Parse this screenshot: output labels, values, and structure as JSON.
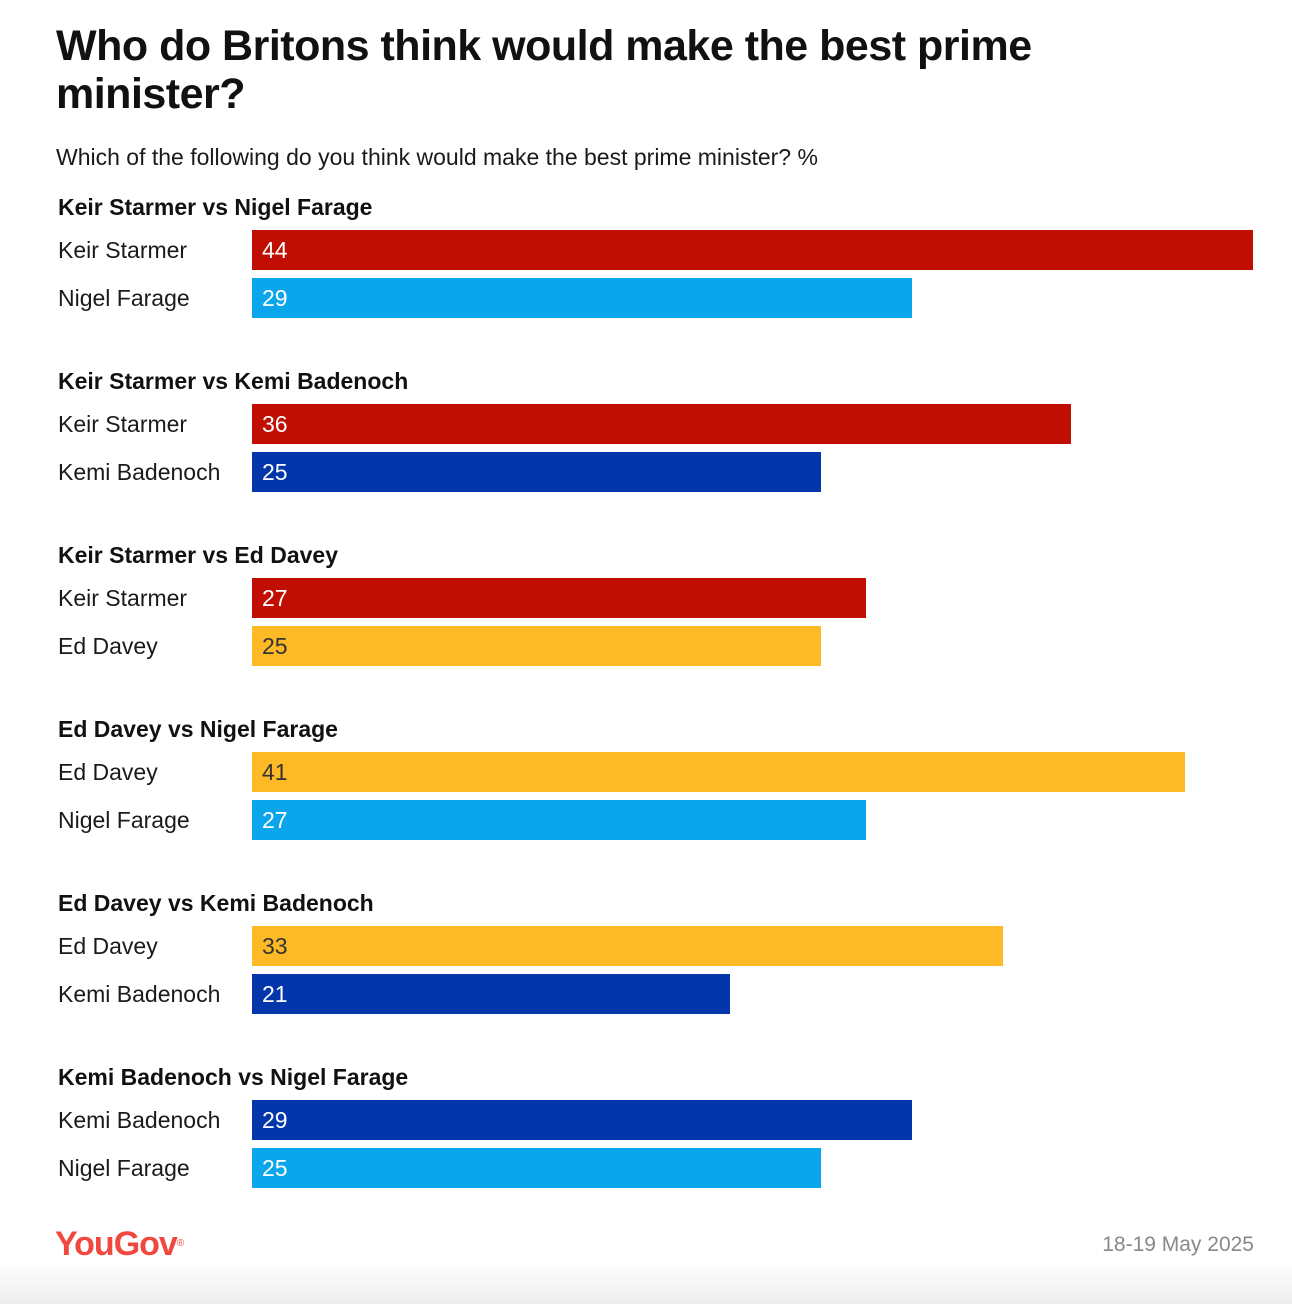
{
  "header": {
    "title": "Who do Britons think would make the best prime minister?",
    "subtitle": "Which of the following do you think would make the best prime minister? %"
  },
  "colors": {
    "Keir Starmer": "#c00f02",
    "Nigel Farage": "#0aa5eb",
    "Kemi Badenoch": "#0336ab",
    "Ed Davey": "#fdb926"
  },
  "value_text_colors": {
    "Keir Starmer": "#ffffff",
    "Nigel Farage": "#ffffff",
    "Kemi Badenoch": "#ffffff",
    "Ed Davey": "#333333"
  },
  "chart_data": {
    "type": "bar",
    "orientation": "horizontal",
    "title": "Who do Britons think would make the best prime minister?",
    "subtitle": "Which of the following do you think would make the best prime minister? %",
    "xlim": [
      0,
      44
    ],
    "groups": [
      {
        "title": "Keir Starmer vs Nigel Farage",
        "bars": [
          {
            "label": "Keir Starmer",
            "value": 44
          },
          {
            "label": "Nigel Farage",
            "value": 29
          }
        ]
      },
      {
        "title": "Keir Starmer vs Kemi Badenoch",
        "bars": [
          {
            "label": "Keir Starmer",
            "value": 36
          },
          {
            "label": "Kemi Badenoch",
            "value": 25
          }
        ]
      },
      {
        "title": "Keir Starmer vs Ed Davey",
        "bars": [
          {
            "label": "Keir Starmer",
            "value": 27
          },
          {
            "label": "Ed Davey",
            "value": 25
          }
        ]
      },
      {
        "title": "Ed Davey vs Nigel Farage",
        "bars": [
          {
            "label": "Ed Davey",
            "value": 41
          },
          {
            "label": "Nigel Farage",
            "value": 27
          }
        ]
      },
      {
        "title": "Ed Davey vs Kemi Badenoch",
        "bars": [
          {
            "label": "Ed Davey",
            "value": 33
          },
          {
            "label": "Kemi Badenoch",
            "value": 21
          }
        ]
      },
      {
        "title": "Kemi Badenoch vs Nigel Farage",
        "bars": [
          {
            "label": "Kemi Badenoch",
            "value": 29
          },
          {
            "label": "Nigel Farage",
            "value": 25
          }
        ]
      }
    ]
  },
  "footer": {
    "brand": "YouGov",
    "brand_mark": "®",
    "date": "18-19 May 2025"
  }
}
